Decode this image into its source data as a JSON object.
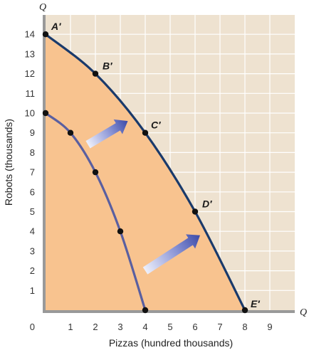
{
  "chart_data": {
    "type": "line",
    "xlabel": "Pizzas (hundred thousands)",
    "ylabel": "Robots (thousands)",
    "x_axis_end_label": "Q",
    "y_axis_end_label": "Q",
    "origin_label": "0",
    "xlim": [
      0,
      10
    ],
    "ylim": [
      0,
      15
    ],
    "x_ticks": [
      1,
      2,
      3,
      4,
      5,
      6,
      7,
      8,
      9
    ],
    "y_ticks": [
      1,
      2,
      3,
      4,
      5,
      6,
      7,
      8,
      9,
      10,
      11,
      12,
      13,
      14
    ],
    "grid": true,
    "series": [
      {
        "points": [
          {
            "x": 0,
            "y": 10
          },
          {
            "x": 1,
            "y": 9
          },
          {
            "x": 2,
            "y": 7
          },
          {
            "x": 3,
            "y": 4
          },
          {
            "x": 4,
            "y": 0
          }
        ],
        "color": "#5a5fa0"
      },
      {
        "points": [
          {
            "x": 0,
            "y": 14,
            "label": "A′"
          },
          {
            "x": 2,
            "y": 12,
            "label": "B′"
          },
          {
            "x": 4,
            "y": 9,
            "label": "C′"
          },
          {
            "x": 6,
            "y": 5,
            "label": "D′"
          },
          {
            "x": 8,
            "y": 0,
            "label": "E′"
          }
        ],
        "color": "#1a3a6b"
      }
    ],
    "annotations": [
      {
        "type": "arrow",
        "from": [
          1.7,
          8.4
        ],
        "to": [
          3.3,
          9.6
        ]
      },
      {
        "type": "arrow",
        "from": [
          4.0,
          2.0
        ],
        "to": [
          6.2,
          3.8
        ]
      }
    ],
    "colors": {
      "inside_frontier": "#f8c38f",
      "outside_frontier": "#eee2d0",
      "grid": "#ffffff",
      "axes": "#999999"
    }
  }
}
